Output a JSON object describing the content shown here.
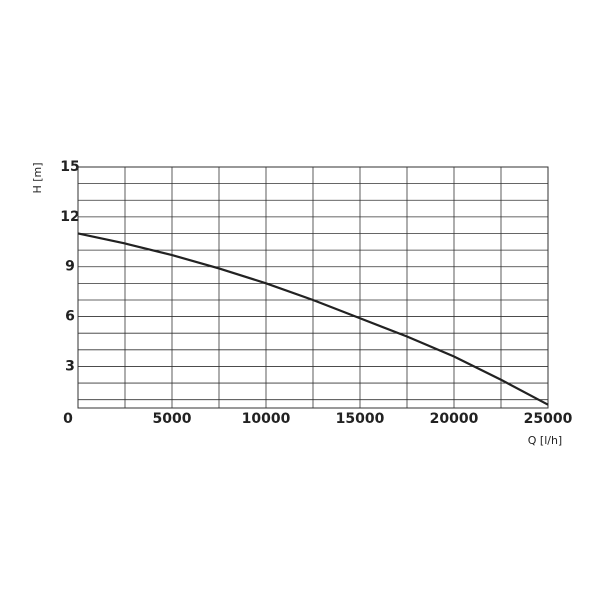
{
  "chart_data": {
    "type": "line",
    "x_label": "Q [l/h]",
    "y_label": "H [m]",
    "x": [
      0,
      2500,
      5000,
      7500,
      10000,
      12500,
      15000,
      17500,
      20000,
      22500,
      25000
    ],
    "series": [
      {
        "name": "H",
        "color": "#222222",
        "values": [
          11.0,
          10.4,
          9.7,
          8.9,
          8.0,
          7.0,
          5.9,
          4.8,
          3.6,
          2.2,
          0.7
        ]
      }
    ],
    "xlim": [
      0,
      25000
    ],
    "xticks": [
      0,
      5000,
      10000,
      15000,
      20000,
      25000
    ],
    "x_minor_ticks": [
      2500,
      7500,
      12500,
      17500,
      22500
    ],
    "ylim": [
      0.5,
      15
    ],
    "yticks": [
      3,
      6,
      9,
      12,
      15
    ],
    "y_minor_ticks": [
      1,
      2,
      4,
      5,
      7,
      8,
      10,
      11,
      13,
      14
    ],
    "grid": true
  }
}
